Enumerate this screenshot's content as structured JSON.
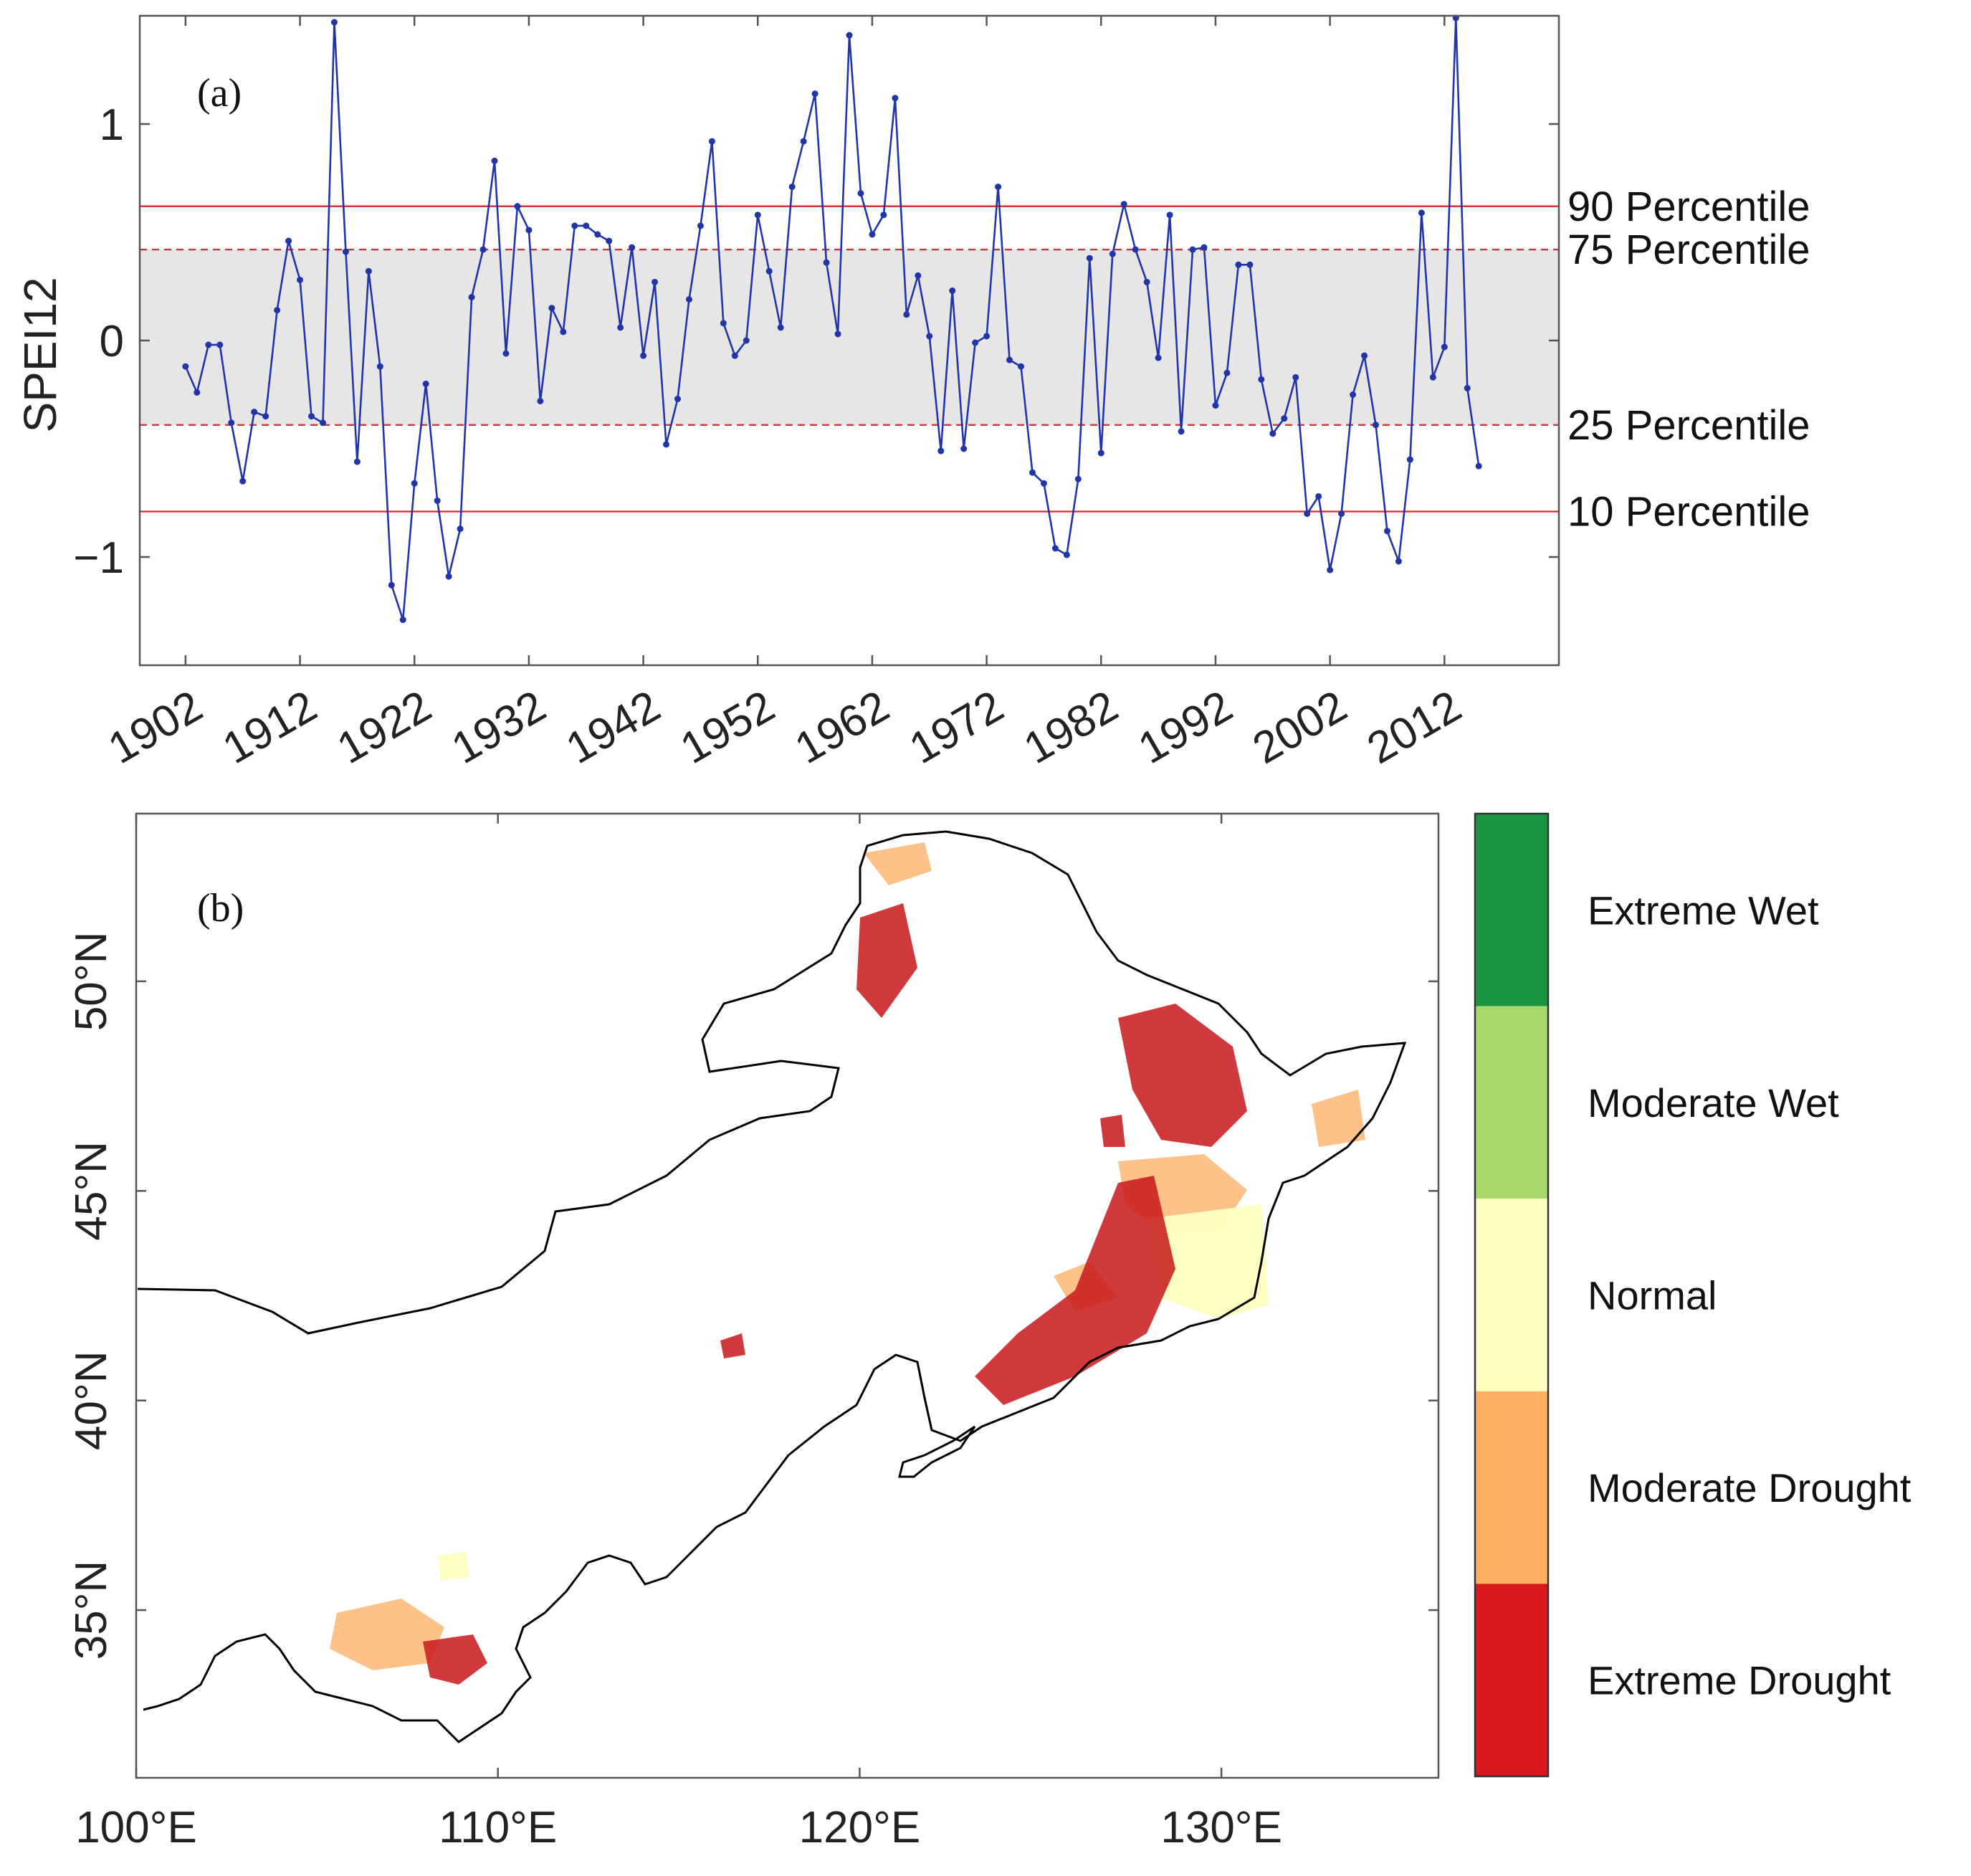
{
  "chart_data": [
    {
      "type": "line",
      "panel_label": "(a)",
      "ylabel": "SPEI12",
      "ylim": [
        -1.5,
        1.5
      ],
      "xlim": [
        1898,
        2022
      ],
      "y_ticks": [
        {
          "value": 1,
          "label": "1"
        },
        {
          "value": 0,
          "label": "0"
        },
        {
          "value": -1,
          "label": "−1"
        }
      ],
      "x_ticks": [
        {
          "value": 1902,
          "label": "1902"
        },
        {
          "value": 1912,
          "label": "1912"
        },
        {
          "value": 1922,
          "label": "1922"
        },
        {
          "value": 1932,
          "label": "1932"
        },
        {
          "value": 1942,
          "label": "1942"
        },
        {
          "value": 1952,
          "label": "1952"
        },
        {
          "value": 1962,
          "label": "1962"
        },
        {
          "value": 1972,
          "label": "1972"
        },
        {
          "value": 1982,
          "label": "1982"
        },
        {
          "value": 1992,
          "label": "1992"
        },
        {
          "value": 2002,
          "label": "2002"
        },
        {
          "value": 2012,
          "label": "2012"
        }
      ],
      "percentile_band": {
        "low": -0.39,
        "high": 0.42,
        "color": "#e6e6e6"
      },
      "percentiles": [
        {
          "label": "90 Percentile",
          "value": 0.62,
          "style": "solid"
        },
        {
          "label": "75 Percentile",
          "value": 0.42,
          "style": "dashed"
        },
        {
          "label": "25 Percentile",
          "value": -0.39,
          "style": "dashed"
        },
        {
          "label": "10 Percentile",
          "value": -0.79,
          "style": "solid"
        }
      ],
      "series": [
        {
          "name": "SPEI12",
          "color": "#1f35a8",
          "x": [
            1902,
            1903,
            1904,
            1905,
            1906,
            1907,
            1908,
            1909,
            1910,
            1911,
            1912,
            1913,
            1914,
            1915,
            1916,
            1917,
            1918,
            1919,
            1920,
            1921,
            1922,
            1923,
            1924,
            1925,
            1926,
            1927,
            1928,
            1929,
            1930,
            1931,
            1932,
            1933,
            1934,
            1935,
            1936,
            1937,
            1938,
            1939,
            1940,
            1941,
            1942,
            1943,
            1944,
            1945,
            1946,
            1947,
            1948,
            1949,
            1950,
            1951,
            1952,
            1953,
            1954,
            1955,
            1956,
            1957,
            1958,
            1959,
            1960,
            1961,
            1962,
            1963,
            1964,
            1965,
            1966,
            1967,
            1968,
            1969,
            1970,
            1971,
            1972,
            1973,
            1974,
            1975,
            1976,
            1977,
            1978,
            1979,
            1980,
            1981,
            1982,
            1983,
            1984,
            1985,
            1986,
            1987,
            1988,
            1989,
            1990,
            1991,
            1992,
            1993,
            1994,
            1995,
            1996,
            1997,
            1998,
            1999,
            2000,
            2001,
            2002,
            2003,
            2004,
            2005,
            2006,
            2007,
            2008,
            2009,
            2010,
            2011,
            2012,
            2013,
            2014,
            2015
          ],
          "values": [
            -0.12,
            -0.24,
            -0.02,
            -0.02,
            -0.38,
            -0.65,
            -0.33,
            -0.35,
            0.14,
            0.46,
            0.28,
            -0.35,
            -0.38,
            1.47,
            0.41,
            -0.56,
            0.32,
            -0.12,
            -1.13,
            -1.29,
            -0.66,
            -0.2,
            -0.74,
            -1.09,
            -0.87,
            0.2,
            0.42,
            0.83,
            -0.06,
            0.62,
            0.51,
            -0.28,
            0.15,
            0.04,
            0.53,
            0.53,
            0.49,
            0.46,
            0.06,
            0.43,
            -0.07,
            0.27,
            -0.48,
            -0.27,
            0.19,
            0.53,
            0.92,
            0.08,
            -0.07,
            0.0,
            0.58,
            0.32,
            0.06,
            0.71,
            0.92,
            1.14,
            0.36,
            0.03,
            1.41,
            0.68,
            0.49,
            0.58,
            1.12,
            0.12,
            0.3,
            0.02,
            -0.51,
            0.23,
            -0.5,
            -0.01,
            0.02,
            0.71,
            -0.09,
            -0.12,
            -0.61,
            -0.66,
            -0.96,
            -0.99,
            -0.64,
            0.38,
            -0.52,
            0.4,
            0.63,
            0.42,
            0.27,
            -0.08,
            0.58,
            -0.42,
            0.42,
            0.43,
            -0.3,
            -0.15,
            0.35,
            0.35,
            -0.18,
            -0.43,
            -0.36,
            -0.17,
            -0.8,
            -0.72,
            -1.06,
            -0.8,
            -0.25,
            -0.07,
            -0.39,
            -0.88,
            -1.02,
            -0.55,
            0.59,
            -0.17,
            -0.03,
            1.49,
            -0.22,
            -0.58
          ]
        }
      ]
    },
    {
      "type": "heatmap",
      "panel_label": "(b)",
      "description_type": "map",
      "x_ticks": [
        {
          "value": 100,
          "label": "100°E"
        },
        {
          "value": 110,
          "label": "110°E"
        },
        {
          "value": 120,
          "label": "120°E"
        },
        {
          "value": 130,
          "label": "130°E"
        }
      ],
      "y_ticks": [
        {
          "value": 50,
          "label": "50°N"
        },
        {
          "value": 45,
          "label": "45°N"
        },
        {
          "value": 40,
          "label": "40°N"
        },
        {
          "value": 35,
          "label": "35°N"
        }
      ],
      "xlim": [
        100,
        136
      ],
      "ylim": [
        31,
        54
      ],
      "legend": [
        {
          "label": "Extreme Wet",
          "color": "#1a9641"
        },
        {
          "label": "Moderate Wet",
          "color": "#a6d96a"
        },
        {
          "label": "Normal",
          "color": "#ffffc0"
        },
        {
          "label": "Moderate Drought",
          "color": "#fdae61"
        },
        {
          "label": "Extreme Drought",
          "color": "#d7191c"
        }
      ]
    }
  ]
}
